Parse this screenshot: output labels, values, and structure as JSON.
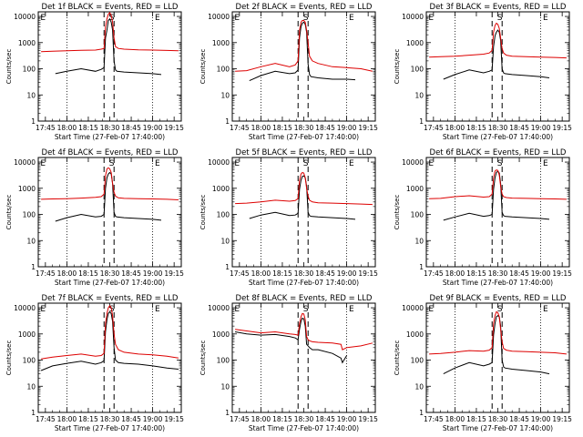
{
  "figure": {
    "background": "#ffffff",
    "event_color": "#000000",
    "lld_color": "#dd0000"
  },
  "common": {
    "ylabel": "Counts/sec",
    "xlabel": "Start Time (27-Feb-07 17:40:00)",
    "x_tick_labels": [
      "17:45",
      "18:00",
      "18:15",
      "18:30",
      "18:45",
      "19:00",
      "19:15"
    ],
    "x_tick_minutes": [
      5,
      20,
      35,
      50,
      65,
      80,
      95
    ],
    "y_tick_labels": [
      "1",
      "10",
      "100",
      "1000",
      "10000"
    ],
    "y_tick_values": [
      1,
      10,
      100,
      1000,
      10000
    ],
    "xlim_minutes": [
      0,
      100
    ],
    "ylim": [
      1,
      15000
    ],
    "y_scale": "log",
    "dotted_vlines_minutes": [
      20,
      80
    ],
    "dashed_vlines_minutes": [
      46,
      53
    ],
    "markers": [
      {
        "label": "E",
        "minute": 1.5
      },
      {
        "label": "S",
        "minute": 49.5
      },
      {
        "label": "E",
        "minute": 81.5
      }
    ]
  },
  "chart_data": [
    {
      "type": "line",
      "title": "Det 1f BLACK = Events, RED = LLD",
      "xlabel": "Start Time (27-Feb-07 17:40:00)",
      "ylabel": "Counts/sec",
      "ylim": [
        1,
        15000
      ],
      "series": [
        {
          "name": "Events",
          "x": [
            12,
            20,
            30,
            40,
            44,
            46,
            47,
            48,
            49,
            50,
            51,
            52,
            53,
            54,
            55,
            60,
            70,
            80,
            86
          ],
          "y": [
            65,
            80,
            100,
            80,
            95,
            110,
            1500,
            3000,
            7000,
            8000,
            6000,
            3000,
            200,
            90,
            80,
            75,
            70,
            65,
            60
          ]
        },
        {
          "name": "LLD",
          "x": [
            2,
            10,
            20,
            30,
            40,
            44,
            46,
            47,
            48,
            49,
            50,
            51,
            52,
            53,
            54,
            56,
            60,
            70,
            80,
            90,
            98
          ],
          "y": [
            450,
            470,
            490,
            510,
            520,
            560,
            600,
            4000,
            8000,
            12000,
            14000,
            11000,
            6000,
            1500,
            700,
            600,
            560,
            530,
            520,
            500,
            490
          ]
        }
      ]
    },
    {
      "type": "line",
      "title": "Det 2f BLACK = Events, RED = LLD",
      "xlabel": "Start Time (27-Feb-07 17:40:00)",
      "ylabel": "Counts/sec",
      "ylim": [
        1,
        15000
      ],
      "series": [
        {
          "name": "Events",
          "x": [
            12,
            20,
            30,
            40,
            44,
            46,
            47,
            48,
            49,
            50,
            51,
            52,
            53,
            54,
            55,
            60,
            70,
            80,
            86
          ],
          "y": [
            35,
            55,
            80,
            65,
            70,
            90,
            1500,
            4000,
            5500,
            6000,
            5000,
            2500,
            150,
            60,
            50,
            45,
            40,
            40,
            38
          ]
        },
        {
          "name": "LLD",
          "x": [
            2,
            10,
            20,
            30,
            40,
            44,
            46,
            47,
            48,
            49,
            50,
            51,
            52,
            53,
            54,
            56,
            60,
            70,
            80,
            90,
            98
          ],
          "y": [
            80,
            85,
            120,
            160,
            120,
            140,
            200,
            3000,
            6000,
            7000,
            7000,
            6000,
            3000,
            1000,
            300,
            200,
            160,
            120,
            110,
            100,
            80
          ]
        }
      ]
    },
    {
      "type": "line",
      "title": "Det 3f BLACK = Events, RED = LLD",
      "xlabel": "Start Time (27-Feb-07 17:40:00)",
      "ylabel": "Counts/sec",
      "ylim": [
        1,
        15000
      ],
      "series": [
        {
          "name": "Events",
          "x": [
            12,
            20,
            30,
            40,
            44,
            46,
            47,
            48,
            49,
            50,
            51,
            52,
            53,
            54,
            55,
            60,
            70,
            80,
            86
          ],
          "y": [
            40,
            60,
            90,
            70,
            80,
            90,
            700,
            1800,
            2500,
            3000,
            2500,
            1200,
            100,
            70,
            65,
            60,
            55,
            50,
            45
          ]
        },
        {
          "name": "LLD",
          "x": [
            2,
            10,
            20,
            30,
            40,
            44,
            46,
            47,
            48,
            49,
            50,
            51,
            52,
            53,
            54,
            56,
            60,
            70,
            80,
            90,
            98
          ],
          "y": [
            280,
            290,
            300,
            330,
            360,
            400,
            500,
            2500,
            4500,
            5500,
            5000,
            3500,
            1500,
            600,
            400,
            330,
            300,
            290,
            280,
            270,
            260
          ]
        }
      ]
    },
    {
      "type": "line",
      "title": "Det 4f BLACK = Events, RED = LLD",
      "xlabel": "Start Time (27-Feb-07 17:40:00)",
      "ylabel": "Counts/sec",
      "ylim": [
        1,
        15000
      ],
      "series": [
        {
          "name": "Events",
          "x": [
            12,
            20,
            30,
            40,
            44,
            46,
            47,
            48,
            49,
            50,
            51,
            52,
            53,
            54,
            55,
            60,
            70,
            80,
            86
          ],
          "y": [
            55,
            75,
            100,
            80,
            85,
            100,
            1000,
            2500,
            3500,
            4000,
            3500,
            1500,
            120,
            85,
            80,
            75,
            70,
            65,
            60
          ]
        },
        {
          "name": "LLD",
          "x": [
            2,
            10,
            20,
            30,
            40,
            44,
            46,
            47,
            48,
            49,
            50,
            51,
            52,
            53,
            54,
            56,
            60,
            70,
            80,
            90,
            98
          ],
          "y": [
            380,
            390,
            400,
            420,
            450,
            480,
            600,
            3000,
            5500,
            6000,
            5500,
            4000,
            1500,
            700,
            500,
            430,
            410,
            400,
            390,
            380,
            360
          ]
        }
      ]
    },
    {
      "type": "line",
      "title": "Det 5f BLACK = Events, RED = LLD",
      "xlabel": "Start Time (27-Feb-07 17:40:00)",
      "ylabel": "Counts/sec",
      "ylim": [
        1,
        15000
      ],
      "series": [
        {
          "name": "Events",
          "x": [
            12,
            20,
            30,
            40,
            44,
            46,
            47,
            48,
            49,
            50,
            51,
            52,
            53,
            54,
            55,
            60,
            70,
            80,
            86
          ],
          "y": [
            70,
            95,
            120,
            90,
            95,
            110,
            900,
            2000,
            2800,
            3000,
            2500,
            1200,
            120,
            90,
            85,
            80,
            75,
            70,
            65
          ]
        },
        {
          "name": "LLD",
          "x": [
            2,
            10,
            20,
            30,
            40,
            44,
            46,
            47,
            48,
            49,
            50,
            51,
            52,
            53,
            54,
            56,
            60,
            70,
            80,
            90,
            98
          ],
          "y": [
            260,
            270,
            300,
            350,
            320,
            340,
            400,
            2000,
            3500,
            4000,
            3800,
            2500,
            1000,
            500,
            350,
            300,
            280,
            270,
            260,
            250,
            240
          ]
        }
      ]
    },
    {
      "type": "line",
      "title": "Det 6f BLACK = Events, RED = LLD",
      "xlabel": "Start Time (27-Feb-07 17:40:00)",
      "ylabel": "Counts/sec",
      "ylim": [
        1,
        15000
      ],
      "series": [
        {
          "name": "Events",
          "x": [
            12,
            20,
            30,
            40,
            44,
            46,
            47,
            48,
            49,
            50,
            51,
            52,
            53,
            54,
            55,
            60,
            70,
            80,
            86
          ],
          "y": [
            60,
            80,
            110,
            85,
            90,
            100,
            900,
            2500,
            4000,
            4500,
            3800,
            1500,
            120,
            90,
            85,
            80,
            75,
            70,
            65
          ]
        },
        {
          "name": "LLD",
          "x": [
            2,
            10,
            20,
            30,
            40,
            44,
            46,
            47,
            48,
            49,
            50,
            51,
            52,
            53,
            54,
            56,
            60,
            70,
            80,
            90,
            98
          ],
          "y": [
            400,
            410,
            480,
            520,
            460,
            480,
            600,
            2500,
            4500,
            5000,
            4800,
            3200,
            1200,
            600,
            480,
            440,
            420,
            410,
            400,
            390,
            380
          ]
        }
      ]
    },
    {
      "type": "line",
      "title": "Det 7f BLACK = Events, RED = LLD",
      "xlabel": "Start Time (27-Feb-07 17:40:00)",
      "ylabel": "Counts/sec",
      "ylim": [
        1,
        15000
      ],
      "series": [
        {
          "name": "Events",
          "x": [
            2,
            10,
            20,
            30,
            40,
            44,
            46,
            47,
            48,
            49,
            50,
            51,
            52,
            53,
            54,
            56,
            60,
            70,
            80,
            90,
            98
          ],
          "y": [
            40,
            60,
            75,
            90,
            70,
            80,
            95,
            1200,
            3500,
            6000,
            7000,
            6000,
            3000,
            300,
            100,
            80,
            75,
            70,
            60,
            50,
            45
          ]
        },
        {
          "name": "LLD",
          "x": [
            2,
            10,
            20,
            30,
            40,
            44,
            46,
            47,
            48,
            49,
            50,
            51,
            52,
            53,
            54,
            56,
            60,
            70,
            80,
            90,
            98
          ],
          "y": [
            110,
            130,
            150,
            170,
            140,
            150,
            180,
            2500,
            6000,
            10000,
            12000,
            10000,
            5000,
            1000,
            400,
            250,
            200,
            170,
            160,
            140,
            120
          ]
        }
      ]
    },
    {
      "type": "line",
      "title": "Det 8f BLACK = Events, RED = LLD",
      "xlabel": "Start Time (27-Feb-07 17:40:00)",
      "ylabel": "Counts/sec",
      "ylim": [
        1,
        15000
      ],
      "series": [
        {
          "name": "Events",
          "x": [
            2,
            10,
            20,
            30,
            40,
            44,
            46,
            47,
            48,
            49,
            50,
            51,
            52,
            53,
            54,
            56,
            60,
            70,
            76,
            77,
            80
          ],
          "y": [
            1200,
            1000,
            900,
            950,
            800,
            700,
            600,
            1500,
            3000,
            4000,
            3800,
            2000,
            400,
            350,
            300,
            250,
            250,
            180,
            120,
            80,
            150
          ]
        },
        {
          "name": "LLD",
          "x": [
            2,
            10,
            20,
            30,
            40,
            44,
            46,
            47,
            48,
            49,
            50,
            51,
            52,
            53,
            54,
            56,
            60,
            70,
            76,
            77,
            80,
            90,
            98
          ],
          "y": [
            1500,
            1300,
            1100,
            1200,
            1000,
            950,
            900,
            2500,
            4500,
            6000,
            5800,
            3500,
            800,
            600,
            550,
            500,
            480,
            450,
            400,
            250,
            300,
            350,
            450
          ]
        }
      ]
    },
    {
      "type": "line",
      "title": "Det 9f BLACK = Events, RED = LLD",
      "xlabel": "Start Time (27-Feb-07 17:40:00)",
      "ylabel": "Counts/sec",
      "ylim": [
        1,
        15000
      ],
      "series": [
        {
          "name": "Events",
          "x": [
            12,
            20,
            30,
            40,
            44,
            46,
            47,
            48,
            49,
            50,
            51,
            52,
            53,
            54,
            55,
            60,
            70,
            80,
            86
          ],
          "y": [
            30,
            50,
            80,
            60,
            70,
            80,
            900,
            2500,
            4500,
            5000,
            4500,
            2000,
            100,
            55,
            50,
            45,
            40,
            35,
            30
          ]
        },
        {
          "name": "LLD",
          "x": [
            2,
            10,
            20,
            30,
            40,
            44,
            46,
            47,
            48,
            49,
            50,
            51,
            52,
            53,
            54,
            56,
            60,
            70,
            80,
            90,
            98
          ],
          "y": [
            170,
            180,
            200,
            230,
            220,
            240,
            300,
            2500,
            5000,
            7000,
            6500,
            4500,
            1500,
            500,
            280,
            240,
            220,
            210,
            200,
            190,
            170
          ]
        }
      ]
    }
  ]
}
